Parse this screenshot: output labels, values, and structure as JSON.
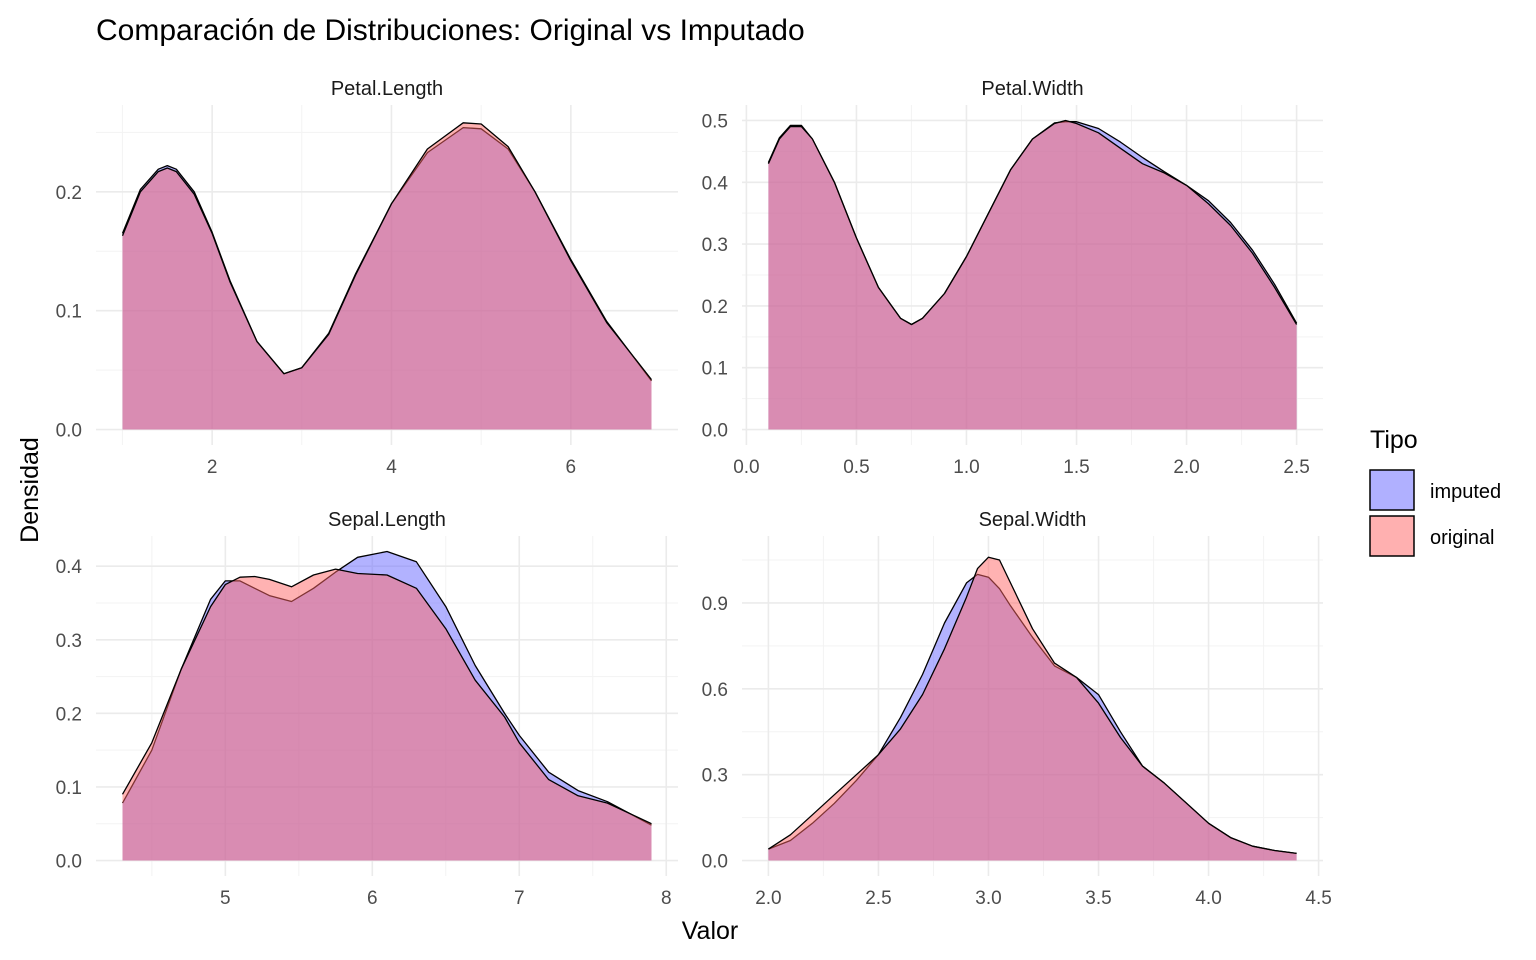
{
  "chart_data": {
    "type": "area",
    "title": "Comparación de Distribuciones: Original vs Imputado",
    "xlabel": "Valor",
    "ylabel": "Densidad",
    "legend": {
      "title": "Tipo",
      "placement": "right",
      "entries": [
        {
          "name": "imputed",
          "color": "#6666ff"
        },
        {
          "name": "original",
          "color": "#ff7777"
        }
      ]
    },
    "overlap_color": "#c77bb3",
    "panels": [
      {
        "name": "Petal.Length",
        "xlim": [
          1.0,
          6.9
        ],
        "ylim": [
          0,
          0.26
        ],
        "xticks": [
          {
            "v": 2,
            "label": "2"
          },
          {
            "v": 4,
            "label": "4"
          },
          {
            "v": 6,
            "label": "6"
          }
        ],
        "xminor": [
          1,
          3,
          5
        ],
        "yticks": [
          {
            "v": 0,
            "label": "0.0"
          },
          {
            "v": 0.1,
            "label": "0.1"
          },
          {
            "v": 0.2,
            "label": "0.2"
          }
        ],
        "yminor": [
          0.05,
          0.15,
          0.25
        ],
        "series": [
          {
            "name": "original",
            "x": [
              1.0,
              1.2,
              1.4,
              1.5,
              1.6,
              1.8,
              2.0,
              2.2,
              2.5,
              2.8,
              3.0,
              3.3,
              3.6,
              4.0,
              4.4,
              4.8,
              5.0,
              5.3,
              5.6,
              6.0,
              6.4,
              6.9
            ],
            "y": [
              0.163,
              0.2,
              0.217,
              0.22,
              0.217,
              0.198,
              0.165,
              0.124,
              0.074,
              0.047,
              0.052,
              0.08,
              0.13,
              0.19,
              0.236,
              0.258,
              0.257,
              0.238,
              0.2,
              0.142,
              0.09,
              0.042
            ]
          },
          {
            "name": "imputed",
            "x": [
              1.0,
              1.2,
              1.4,
              1.5,
              1.6,
              1.8,
              2.0,
              2.2,
              2.5,
              2.8,
              3.0,
              3.3,
              3.6,
              4.0,
              4.4,
              4.8,
              5.0,
              5.3,
              5.6,
              6.0,
              6.4,
              6.9
            ],
            "y": [
              0.165,
              0.202,
              0.219,
              0.222,
              0.219,
              0.2,
              0.166,
              0.125,
              0.074,
              0.047,
              0.052,
              0.081,
              0.131,
              0.19,
              0.233,
              0.254,
              0.253,
              0.236,
              0.2,
              0.143,
              0.091,
              0.041
            ]
          }
        ]
      },
      {
        "name": "Petal.Width",
        "xlim": [
          0.1,
          2.5
        ],
        "ylim": [
          0,
          0.5
        ],
        "xticks": [
          {
            "v": 0.0,
            "label": "0.0"
          },
          {
            "v": 0.5,
            "label": "0.5"
          },
          {
            "v": 1.0,
            "label": "1.0"
          },
          {
            "v": 1.5,
            "label": "1.5"
          },
          {
            "v": 2.0,
            "label": "2.0"
          },
          {
            "v": 2.5,
            "label": "2.5"
          }
        ],
        "xminor": [
          0.25,
          0.75,
          1.25,
          1.75,
          2.25
        ],
        "yticks": [
          {
            "v": 0,
            "label": "0.0"
          },
          {
            "v": 0.1,
            "label": "0.1"
          },
          {
            "v": 0.2,
            "label": "0.2"
          },
          {
            "v": 0.3,
            "label": "0.3"
          },
          {
            "v": 0.4,
            "label": "0.4"
          },
          {
            "v": 0.5,
            "label": "0.5"
          }
        ],
        "yminor": [
          0.05,
          0.15,
          0.25,
          0.35,
          0.45
        ],
        "series": [
          {
            "name": "original",
            "x": [
              0.1,
              0.15,
              0.2,
              0.25,
              0.3,
              0.4,
              0.5,
              0.6,
              0.7,
              0.75,
              0.8,
              0.9,
              1.0,
              1.1,
              1.2,
              1.3,
              1.4,
              1.45,
              1.5,
              1.6,
              1.7,
              1.8,
              1.9,
              2.0,
              2.1,
              2.2,
              2.3,
              2.4,
              2.5
            ],
            "y": [
              0.43,
              0.47,
              0.49,
              0.49,
              0.47,
              0.4,
              0.31,
              0.23,
              0.18,
              0.17,
              0.18,
              0.22,
              0.28,
              0.35,
              0.42,
              0.47,
              0.495,
              0.5,
              0.495,
              0.48,
              0.455,
              0.43,
              0.415,
              0.395,
              0.365,
              0.33,
              0.285,
              0.23,
              0.17
            ]
          },
          {
            "name": "imputed",
            "x": [
              0.1,
              0.15,
              0.2,
              0.25,
              0.3,
              0.4,
              0.5,
              0.6,
              0.7,
              0.75,
              0.8,
              0.9,
              1.0,
              1.1,
              1.2,
              1.3,
              1.4,
              1.45,
              1.5,
              1.6,
              1.7,
              1.8,
              1.9,
              2.0,
              2.1,
              2.2,
              2.3,
              2.4,
              2.5
            ],
            "y": [
              0.432,
              0.472,
              0.492,
              0.492,
              0.47,
              0.4,
              0.31,
              0.23,
              0.18,
              0.17,
              0.18,
              0.22,
              0.28,
              0.35,
              0.42,
              0.47,
              0.496,
              0.498,
              0.498,
              0.487,
              0.465,
              0.44,
              0.417,
              0.395,
              0.37,
              0.335,
              0.29,
              0.235,
              0.172
            ]
          }
        ]
      },
      {
        "name": "Sepal.Length",
        "xlim": [
          4.3,
          7.9
        ],
        "ylim": [
          0,
          0.42
        ],
        "xticks": [
          {
            "v": 5,
            "label": "5"
          },
          {
            "v": 6,
            "label": "6"
          },
          {
            "v": 7,
            "label": "7"
          },
          {
            "v": 8,
            "label": "8"
          }
        ],
        "xminor": [
          4.5,
          5.5,
          6.5,
          7.5
        ],
        "yticks": [
          {
            "v": 0,
            "label": "0.0"
          },
          {
            "v": 0.1,
            "label": "0.1"
          },
          {
            "v": 0.2,
            "label": "0.2"
          },
          {
            "v": 0.3,
            "label": "0.3"
          },
          {
            "v": 0.4,
            "label": "0.4"
          }
        ],
        "yminor": [
          0.05,
          0.15,
          0.25,
          0.35
        ],
        "series": [
          {
            "name": "original",
            "x": [
              4.3,
              4.5,
              4.7,
              4.9,
              5.0,
              5.1,
              5.2,
              5.3,
              5.45,
              5.6,
              5.75,
              5.9,
              6.1,
              6.3,
              6.5,
              6.7,
              6.9,
              7.0,
              7.2,
              7.4,
              7.6,
              7.9
            ],
            "y": [
              0.09,
              0.16,
              0.26,
              0.345,
              0.375,
              0.385,
              0.386,
              0.382,
              0.372,
              0.388,
              0.396,
              0.39,
              0.388,
              0.37,
              0.315,
              0.245,
              0.195,
              0.16,
              0.11,
              0.088,
              0.078,
              0.05
            ]
          },
          {
            "name": "imputed",
            "x": [
              4.3,
              4.5,
              4.7,
              4.9,
              5.0,
              5.1,
              5.2,
              5.3,
              5.45,
              5.6,
              5.75,
              5.9,
              6.1,
              6.3,
              6.5,
              6.7,
              6.9,
              7.0,
              7.2,
              7.4,
              7.6,
              7.9
            ],
            "y": [
              0.078,
              0.15,
              0.26,
              0.355,
              0.38,
              0.38,
              0.37,
              0.36,
              0.352,
              0.37,
              0.392,
              0.412,
              0.42,
              0.406,
              0.345,
              0.265,
              0.2,
              0.17,
              0.12,
              0.095,
              0.08,
              0.048
            ]
          }
        ]
      },
      {
        "name": "Sepal.Width",
        "xlim": [
          2.0,
          4.4
        ],
        "ylim": [
          0,
          1.08
        ],
        "xticks": [
          {
            "v": 2.0,
            "label": "2.0"
          },
          {
            "v": 2.5,
            "label": "2.5"
          },
          {
            "v": 3.0,
            "label": "3.0"
          },
          {
            "v": 3.5,
            "label": "3.5"
          },
          {
            "v": 4.0,
            "label": "4.0"
          },
          {
            "v": 4.5,
            "label": "4.5"
          }
        ],
        "xminor": [
          2.25,
          2.75,
          3.25,
          3.75,
          4.25
        ],
        "yticks": [
          {
            "v": 0,
            "label": "0.0"
          },
          {
            "v": 0.3,
            "label": "0.3"
          },
          {
            "v": 0.6,
            "label": "0.6"
          },
          {
            "v": 0.9,
            "label": "0.9"
          }
        ],
        "yminor": [
          0.15,
          0.45,
          0.75,
          1.05
        ],
        "series": [
          {
            "name": "original",
            "x": [
              2.0,
              2.1,
              2.2,
              2.3,
              2.4,
              2.5,
              2.6,
              2.7,
              2.8,
              2.9,
              2.95,
              3.0,
              3.05,
              3.1,
              3.2,
              3.3,
              3.4,
              3.5,
              3.6,
              3.7,
              3.8,
              3.9,
              4.0,
              4.1,
              4.2,
              4.3,
              4.4
            ],
            "y": [
              0.04,
              0.09,
              0.16,
              0.23,
              0.3,
              0.37,
              0.46,
              0.58,
              0.74,
              0.92,
              1.02,
              1.06,
              1.05,
              0.97,
              0.81,
              0.69,
              0.64,
              0.55,
              0.43,
              0.33,
              0.27,
              0.2,
              0.13,
              0.08,
              0.05,
              0.035,
              0.025
            ]
          },
          {
            "name": "imputed",
            "x": [
              2.0,
              2.1,
              2.2,
              2.3,
              2.4,
              2.5,
              2.6,
              2.7,
              2.8,
              2.9,
              2.95,
              3.0,
              3.05,
              3.1,
              3.2,
              3.3,
              3.4,
              3.5,
              3.6,
              3.7,
              3.8,
              3.9,
              4.0,
              4.1,
              4.2,
              4.3,
              4.4
            ],
            "y": [
              0.04,
              0.07,
              0.13,
              0.2,
              0.28,
              0.37,
              0.5,
              0.65,
              0.83,
              0.97,
              1.0,
              0.99,
              0.95,
              0.89,
              0.78,
              0.68,
              0.64,
              0.58,
              0.45,
              0.33,
              0.27,
              0.2,
              0.13,
              0.08,
              0.05,
              0.035,
              0.025
            ]
          }
        ]
      }
    ]
  }
}
